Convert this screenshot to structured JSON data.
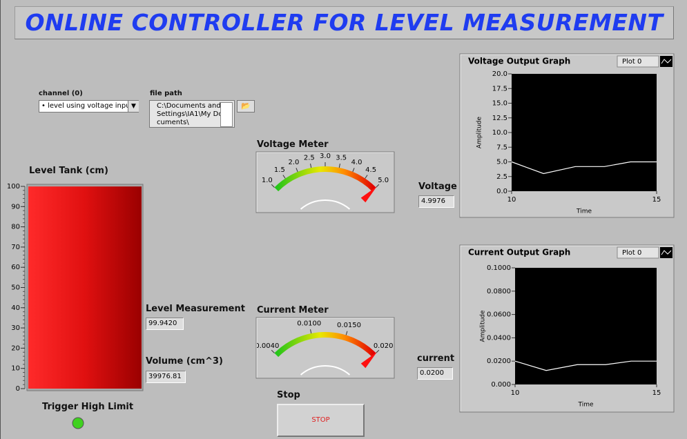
{
  "title": "ONLINE CONTROLLER FOR LEVEL MEASUREMENT",
  "channel": {
    "label": "channel (0)",
    "value": "level using voltage input"
  },
  "file_path": {
    "label": "file path",
    "value": "C:\\Documents and Settings\\IA1\\My Documents\\"
  },
  "tank": {
    "label": "Level Tank (cm)",
    "value": 99.942,
    "ylim": [
      0,
      100
    ],
    "yticks": [
      0,
      10,
      20,
      30,
      40,
      50,
      60,
      70,
      80,
      90,
      100
    ]
  },
  "level_measurement": {
    "label": "Level Measurement",
    "value": "99.9420"
  },
  "volume": {
    "label": "Volume (cm^3)",
    "value": "39976.81"
  },
  "trigger": {
    "label": "Trigger High Limit",
    "on": true,
    "color": "#3fd11f"
  },
  "voltage_meter": {
    "label": "Voltage Meter",
    "range": [
      1,
      5
    ],
    "value": 4.9976,
    "ticks": [
      {
        "value": 1,
        "label": "1.0"
      },
      {
        "value": 1.5,
        "label": "1.5"
      },
      {
        "value": 2,
        "label": "2.0"
      },
      {
        "value": 2.5,
        "label": "2.5"
      },
      {
        "value": 3,
        "label": "3.0"
      },
      {
        "value": 3.5,
        "label": "3.5"
      },
      {
        "value": 4,
        "label": "4.0"
      },
      {
        "value": 4.5,
        "label": "4.5"
      },
      {
        "value": 5,
        "label": "5.0"
      }
    ]
  },
  "voltage": {
    "label": "Voltage",
    "value": "4.9976"
  },
  "current_meter": {
    "label": "Current Meter",
    "range": [
      0.004,
      0.02
    ],
    "value": 0.02,
    "ticks": [
      {
        "value": 0.004,
        "label": "0.0040"
      },
      {
        "value": 0.01,
        "label": "0.0100"
      },
      {
        "value": 0.015,
        "label": "0.0150"
      },
      {
        "value": 0.02,
        "label": "0.020"
      }
    ]
  },
  "current": {
    "label": "current",
    "value": "0.0200"
  },
  "stop": {
    "label": "Stop",
    "button": "STOP"
  },
  "voltage_graph": {
    "title": "Voltage Output Graph",
    "plot": "Plot 0",
    "xlabel": "Time",
    "ylabel": "Amplitude",
    "xlim": [
      10,
      15
    ],
    "xticks": [
      10,
      15
    ],
    "ylim": [
      0,
      20
    ],
    "yticks": [
      {
        "value": 0,
        "label": "0.0"
      },
      {
        "value": 2.5,
        "label": "2.5"
      },
      {
        "value": 5,
        "label": "5.0"
      },
      {
        "value": 7.5,
        "label": "7.5"
      },
      {
        "value": 10,
        "label": "10.0"
      },
      {
        "value": 12.5,
        "label": "12.5"
      },
      {
        "value": 15,
        "label": "15.0"
      },
      {
        "value": 17.5,
        "label": "17.5"
      },
      {
        "value": 20,
        "label": "20.0"
      }
    ],
    "x": [
      10,
      11.1,
      12.2,
      13.2,
      14.1,
      15
    ],
    "values": [
      5.0,
      3.0,
      4.2,
      4.2,
      5.0,
      5.0
    ],
    "color": "#ffffff"
  },
  "current_graph": {
    "title": "Current Output Graph",
    "plot": "Plot 0",
    "xlabel": "Time",
    "ylabel": "Amplitude",
    "xlim": [
      10,
      15
    ],
    "xticks": [
      10,
      15
    ],
    "ylim": [
      0,
      0.1
    ],
    "yticks": [
      {
        "value": 0,
        "label": "0.000"
      },
      {
        "value": 0.02,
        "label": "0.0200"
      },
      {
        "value": 0.04,
        "label": "0.0400"
      },
      {
        "value": 0.06,
        "label": "0.0600"
      },
      {
        "value": 0.08,
        "label": "0.0800"
      },
      {
        "value": 0.1,
        "label": "0.1000"
      }
    ],
    "x": [
      10,
      11.1,
      12.2,
      13.2,
      14.1,
      15
    ],
    "values": [
      0.02,
      0.012,
      0.017,
      0.017,
      0.02,
      0.02
    ],
    "color": "#ffffff"
  }
}
